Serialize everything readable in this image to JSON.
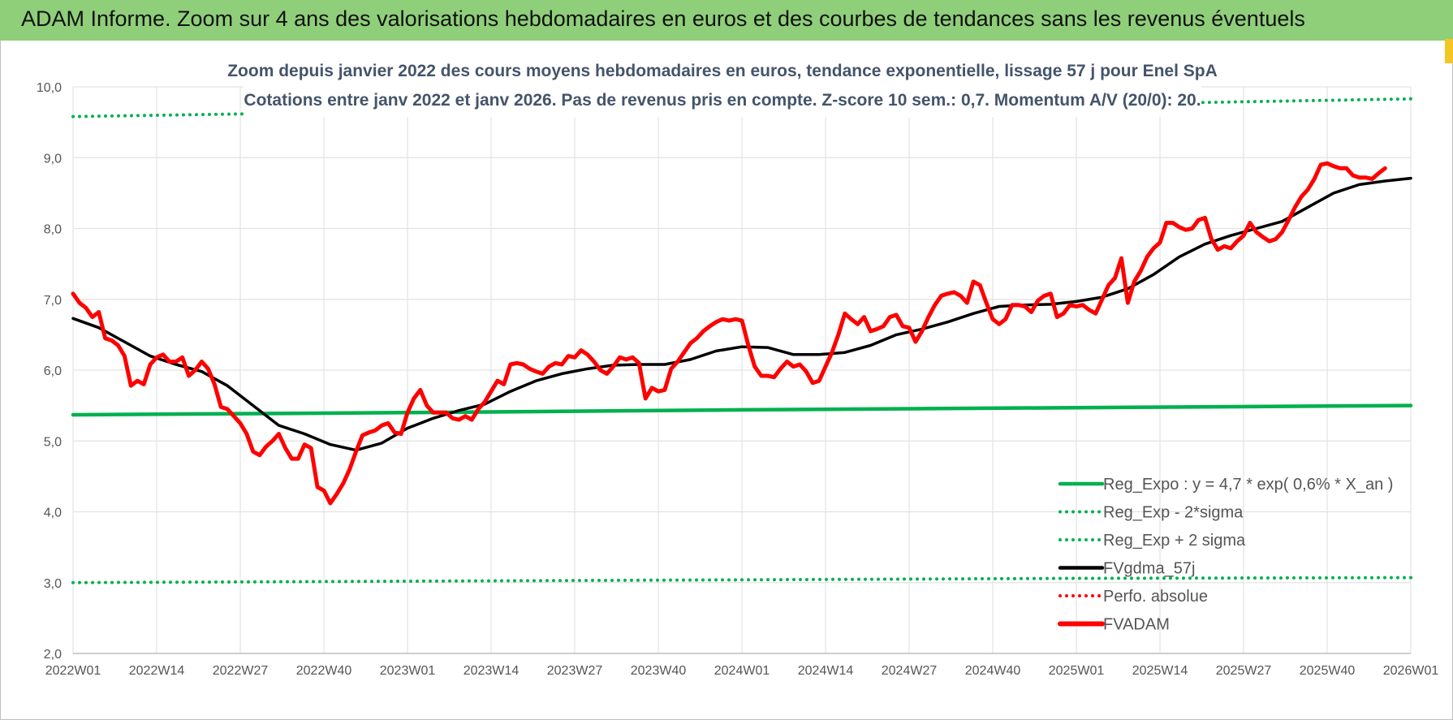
{
  "header": {
    "title": "ADAM Informe. Zoom sur 4 ans des valorisations hebdomadaires en euros et des courbes de tendances sans les revenus éventuels"
  },
  "chart_data": {
    "type": "line",
    "subtitle_line1": "Zoom depuis janvier 2022 des cours moyens hebdomadaires en euros, tendance exponentielle, lissage 57 j pour Enel SpA",
    "subtitle_line2": "Cotations entre janv 2022 et janv 2026. Pas de revenus pris en compte. Z-score 10 sem.: 0,7. Momentum A/V (20/0): 20.",
    "ylim": [
      2,
      10
    ],
    "y_ticks": [
      "2,0",
      "3,0",
      "4,0",
      "5,0",
      "6,0",
      "7,0",
      "8,0",
      "9,0",
      "10,0"
    ],
    "x_ticks": [
      "2022W01",
      "2022W14",
      "2022W27",
      "2022W40",
      "2023W01",
      "2023W14",
      "2023W27",
      "2023W40",
      "2024W01",
      "2024W14",
      "2024W27",
      "2024W40",
      "2025W01",
      "2025W14",
      "2025W27",
      "2025W40",
      "2026W01"
    ],
    "x_range_weeks": [
      0,
      208
    ],
    "grid": true,
    "legend_position": "bottom-right",
    "series": [
      {
        "name": "Reg_Expo : y = 4,7 * exp( 0,6% *  X_an )",
        "color": "#00b050",
        "style": "solid",
        "points": [
          [
            0,
            5.37
          ],
          [
            52,
            5.4
          ],
          [
            104,
            5.44
          ],
          [
            156,
            5.47
          ],
          [
            208,
            5.5
          ]
        ]
      },
      {
        "name": "Reg_Exp - 2*sigma",
        "color": "#00b050",
        "style": "dotted",
        "points": [
          [
            0,
            3.0
          ],
          [
            52,
            3.02
          ],
          [
            104,
            3.04
          ],
          [
            156,
            3.06
          ],
          [
            208,
            3.07
          ]
        ]
      },
      {
        "name": "Reg_Exp + 2 sigma",
        "color": "#00b050",
        "style": "dotted",
        "points": [
          [
            0,
            9.58
          ],
          [
            28,
            9.62
          ],
          [
            176,
            9.78
          ],
          [
            208,
            9.83
          ]
        ]
      },
      {
        "name": "FVgdma_57j",
        "color": "#000000",
        "style": "solid",
        "points": [
          [
            0,
            6.73
          ],
          [
            4,
            6.6
          ],
          [
            8,
            6.4
          ],
          [
            12,
            6.2
          ],
          [
            16,
            6.08
          ],
          [
            20,
            5.98
          ],
          [
            24,
            5.78
          ],
          [
            28,
            5.5
          ],
          [
            32,
            5.22
          ],
          [
            36,
            5.1
          ],
          [
            40,
            4.95
          ],
          [
            44,
            4.87
          ],
          [
            48,
            4.97
          ],
          [
            52,
            5.18
          ],
          [
            56,
            5.32
          ],
          [
            60,
            5.43
          ],
          [
            64,
            5.52
          ],
          [
            68,
            5.7
          ],
          [
            72,
            5.85
          ],
          [
            76,
            5.95
          ],
          [
            80,
            6.02
          ],
          [
            84,
            6.07
          ],
          [
            88,
            6.08
          ],
          [
            92,
            6.08
          ],
          [
            96,
            6.15
          ],
          [
            100,
            6.27
          ],
          [
            104,
            6.33
          ],
          [
            108,
            6.32
          ],
          [
            112,
            6.22
          ],
          [
            116,
            6.22
          ],
          [
            120,
            6.25
          ],
          [
            124,
            6.35
          ],
          [
            128,
            6.5
          ],
          [
            132,
            6.58
          ],
          [
            136,
            6.68
          ],
          [
            140,
            6.8
          ],
          [
            144,
            6.9
          ],
          [
            148,
            6.92
          ],
          [
            152,
            6.93
          ],
          [
            156,
            6.97
          ],
          [
            160,
            7.03
          ],
          [
            164,
            7.15
          ],
          [
            168,
            7.35
          ],
          [
            172,
            7.6
          ],
          [
            176,
            7.78
          ],
          [
            180,
            7.9
          ],
          [
            184,
            8.0
          ],
          [
            188,
            8.1
          ],
          [
            192,
            8.3
          ],
          [
            196,
            8.5
          ],
          [
            200,
            8.62
          ],
          [
            204,
            8.67
          ],
          [
            208,
            8.71
          ]
        ]
      },
      {
        "name": "Perfo. absolue",
        "color": "#ff0000",
        "style": "dotted",
        "points": []
      },
      {
        "name": "FVADAM",
        "color": "#ff0000",
        "style": "solid",
        "points": [
          [
            0,
            7.08
          ],
          [
            1,
            6.95
          ],
          [
            2,
            6.88
          ],
          [
            3,
            6.75
          ],
          [
            4,
            6.82
          ],
          [
            5,
            6.45
          ],
          [
            6,
            6.42
          ],
          [
            7,
            6.35
          ],
          [
            8,
            6.2
          ],
          [
            9,
            5.78
          ],
          [
            10,
            5.85
          ],
          [
            11,
            5.8
          ],
          [
            12,
            6.08
          ],
          [
            13,
            6.18
          ],
          [
            14,
            6.22
          ],
          [
            15,
            6.12
          ],
          [
            16,
            6.12
          ],
          [
            17,
            6.18
          ],
          [
            18,
            5.92
          ],
          [
            19,
            6.0
          ],
          [
            20,
            6.12
          ],
          [
            21,
            6.02
          ],
          [
            22,
            5.8
          ],
          [
            23,
            5.48
          ],
          [
            24,
            5.45
          ],
          [
            25,
            5.35
          ],
          [
            26,
            5.25
          ],
          [
            27,
            5.1
          ],
          [
            28,
            4.85
          ],
          [
            29,
            4.8
          ],
          [
            30,
            4.92
          ],
          [
            31,
            5.0
          ],
          [
            32,
            5.1
          ],
          [
            33,
            4.9
          ],
          [
            34,
            4.75
          ],
          [
            35,
            4.75
          ],
          [
            36,
            4.95
          ],
          [
            37,
            4.9
          ],
          [
            38,
            4.35
          ],
          [
            39,
            4.3
          ],
          [
            40,
            4.12
          ],
          [
            41,
            4.25
          ],
          [
            42,
            4.4
          ],
          [
            43,
            4.6
          ],
          [
            44,
            4.85
          ],
          [
            45,
            5.08
          ],
          [
            46,
            5.12
          ],
          [
            47,
            5.15
          ],
          [
            48,
            5.22
          ],
          [
            49,
            5.25
          ],
          [
            50,
            5.12
          ],
          [
            51,
            5.1
          ],
          [
            52,
            5.4
          ],
          [
            53,
            5.6
          ],
          [
            54,
            5.72
          ],
          [
            55,
            5.5
          ],
          [
            56,
            5.4
          ],
          [
            57,
            5.4
          ],
          [
            58,
            5.4
          ],
          [
            59,
            5.32
          ],
          [
            60,
            5.3
          ],
          [
            61,
            5.35
          ],
          [
            62,
            5.3
          ],
          [
            63,
            5.45
          ],
          [
            64,
            5.55
          ],
          [
            65,
            5.7
          ],
          [
            66,
            5.85
          ],
          [
            67,
            5.8
          ],
          [
            68,
            6.08
          ],
          [
            69,
            6.1
          ],
          [
            70,
            6.08
          ],
          [
            71,
            6.02
          ],
          [
            72,
            5.98
          ],
          [
            73,
            5.95
          ],
          [
            74,
            6.05
          ],
          [
            75,
            6.1
          ],
          [
            76,
            6.08
          ],
          [
            77,
            6.2
          ],
          [
            78,
            6.18
          ],
          [
            79,
            6.28
          ],
          [
            80,
            6.22
          ],
          [
            81,
            6.12
          ],
          [
            82,
            6.0
          ],
          [
            83,
            5.95
          ],
          [
            84,
            6.05
          ],
          [
            85,
            6.18
          ],
          [
            86,
            6.15
          ],
          [
            87,
            6.18
          ],
          [
            88,
            6.1
          ],
          [
            89,
            5.6
          ],
          [
            90,
            5.75
          ],
          [
            91,
            5.7
          ],
          [
            92,
            5.72
          ],
          [
            93,
            6.02
          ],
          [
            94,
            6.12
          ],
          [
            95,
            6.25
          ],
          [
            96,
            6.38
          ],
          [
            97,
            6.45
          ],
          [
            98,
            6.55
          ],
          [
            99,
            6.62
          ],
          [
            100,
            6.68
          ],
          [
            101,
            6.72
          ],
          [
            102,
            6.7
          ],
          [
            103,
            6.72
          ],
          [
            104,
            6.7
          ],
          [
            105,
            6.35
          ],
          [
            106,
            6.05
          ],
          [
            107,
            5.92
          ],
          [
            108,
            5.92
          ],
          [
            109,
            5.9
          ],
          [
            110,
            6.02
          ],
          [
            111,
            6.12
          ],
          [
            112,
            6.05
          ],
          [
            113,
            6.08
          ],
          [
            114,
            5.98
          ],
          [
            115,
            5.82
          ],
          [
            116,
            5.85
          ],
          [
            117,
            6.05
          ],
          [
            118,
            6.25
          ],
          [
            119,
            6.5
          ],
          [
            120,
            6.8
          ],
          [
            121,
            6.72
          ],
          [
            122,
            6.65
          ],
          [
            123,
            6.75
          ],
          [
            124,
            6.55
          ],
          [
            125,
            6.58
          ],
          [
            126,
            6.62
          ],
          [
            127,
            6.75
          ],
          [
            128,
            6.78
          ],
          [
            129,
            6.62
          ],
          [
            130,
            6.6
          ],
          [
            131,
            6.4
          ],
          [
            132,
            6.55
          ],
          [
            133,
            6.75
          ],
          [
            134,
            6.92
          ],
          [
            135,
            7.05
          ],
          [
            136,
            7.08
          ],
          [
            137,
            7.1
          ],
          [
            138,
            7.05
          ],
          [
            139,
            6.95
          ],
          [
            140,
            7.25
          ],
          [
            141,
            7.2
          ],
          [
            142,
            6.95
          ],
          [
            143,
            6.72
          ],
          [
            144,
            6.65
          ],
          [
            145,
            6.72
          ],
          [
            146,
            6.92
          ],
          [
            147,
            6.92
          ],
          [
            148,
            6.9
          ],
          [
            149,
            6.82
          ],
          [
            150,
            6.98
          ],
          [
            151,
            7.05
          ],
          [
            152,
            7.08
          ],
          [
            153,
            6.75
          ],
          [
            154,
            6.8
          ],
          [
            155,
            6.92
          ],
          [
            156,
            6.9
          ],
          [
            157,
            6.92
          ],
          [
            158,
            6.85
          ],
          [
            159,
            6.8
          ],
          [
            160,
            7.0
          ],
          [
            161,
            7.2
          ],
          [
            162,
            7.3
          ],
          [
            163,
            7.58
          ],
          [
            164,
            6.95
          ],
          [
            165,
            7.25
          ],
          [
            166,
            7.4
          ],
          [
            167,
            7.6
          ],
          [
            168,
            7.72
          ],
          [
            169,
            7.8
          ],
          [
            170,
            8.08
          ],
          [
            171,
            8.08
          ],
          [
            172,
            8.02
          ],
          [
            173,
            7.98
          ],
          [
            174,
            8.0
          ],
          [
            175,
            8.12
          ],
          [
            176,
            8.15
          ],
          [
            177,
            7.85
          ],
          [
            178,
            7.7
          ],
          [
            179,
            7.75
          ],
          [
            180,
            7.72
          ],
          [
            181,
            7.82
          ],
          [
            182,
            7.9
          ],
          [
            183,
            8.08
          ],
          [
            184,
            7.95
          ],
          [
            185,
            7.88
          ],
          [
            186,
            7.82
          ],
          [
            187,
            7.85
          ],
          [
            188,
            7.95
          ],
          [
            189,
            8.12
          ],
          [
            190,
            8.3
          ],
          [
            191,
            8.45
          ],
          [
            192,
            8.55
          ],
          [
            193,
            8.7
          ],
          [
            194,
            8.9
          ],
          [
            195,
            8.92
          ],
          [
            196,
            8.88
          ],
          [
            197,
            8.85
          ],
          [
            198,
            8.85
          ],
          [
            199,
            8.75
          ],
          [
            200,
            8.72
          ],
          [
            201,
            8.72
          ],
          [
            202,
            8.7
          ],
          [
            203,
            8.78
          ],
          [
            204,
            8.85
          ]
        ]
      }
    ]
  }
}
